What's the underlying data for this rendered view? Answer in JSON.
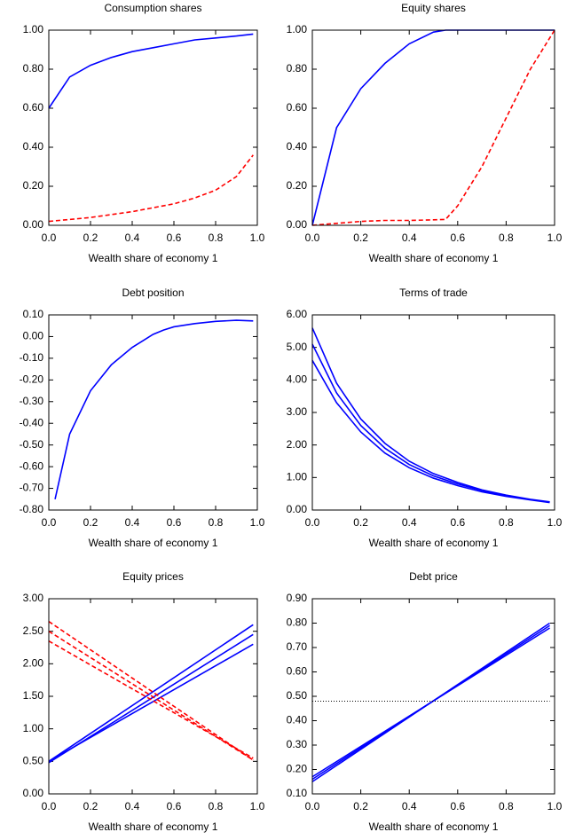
{
  "chart_data": [
    {
      "type": "line",
      "title": "Consumption shares",
      "xlabel": "Wealth share of economy 1",
      "x": [
        0,
        0.1,
        0.2,
        0.3,
        0.4,
        0.5,
        0.6,
        0.7,
        0.8,
        0.9,
        0.98
      ],
      "series": [
        {
          "color": "#0000ff",
          "line_style": "solid",
          "values": [
            0.6,
            0.76,
            0.82,
            0.86,
            0.89,
            0.91,
            0.93,
            0.95,
            0.96,
            0.97,
            0.98
          ]
        },
        {
          "color": "#ff0000",
          "line_style": "dashed",
          "values": [
            0.02,
            0.03,
            0.04,
            0.055,
            0.07,
            0.09,
            0.11,
            0.14,
            0.18,
            0.25,
            0.36
          ]
        }
      ],
      "xlim": [
        0,
        1
      ],
      "xticks": [
        {
          "value": 0,
          "label": "0.0"
        },
        0.2,
        0.4,
        0.6,
        0.8,
        {
          "value": 1,
          "label": "1.0"
        }
      ],
      "ylim": [
        0,
        1
      ],
      "yticks": [
        {
          "value": 0,
          "label": "0.00"
        },
        {
          "value": 0.2,
          "label": "0.20"
        },
        {
          "value": 0.4,
          "label": "0.40"
        },
        {
          "value": 0.6,
          "label": "0.60"
        },
        {
          "value": 0.8,
          "label": "0.80"
        },
        {
          "value": 1,
          "label": "1.00"
        }
      ]
    },
    {
      "type": "line",
      "title": "Equity shares",
      "xlabel": "Wealth share of economy 1",
      "x": [
        0,
        0.1,
        0.2,
        0.3,
        0.4,
        0.5,
        0.55,
        0.6,
        0.7,
        0.8,
        0.9,
        1.0
      ],
      "series": [
        {
          "color": "#0000ff",
          "line_style": "solid",
          "values": [
            0,
            0.5,
            0.7,
            0.83,
            0.93,
            0.99,
            1,
            1,
            1,
            1,
            1,
            1
          ]
        },
        {
          "color": "#ff0000",
          "line_style": "dashed",
          "values": [
            0,
            0.01,
            0.02,
            0.025,
            0.025,
            0.028,
            0.03,
            0.1,
            0.3,
            0.55,
            0.8,
            1.0
          ]
        }
      ],
      "xlim": [
        0,
        1
      ],
      "xticks": [
        {
          "value": 0,
          "label": "0.0"
        },
        0.2,
        0.4,
        0.6,
        0.8,
        {
          "value": 1,
          "label": "1.0"
        }
      ],
      "ylim": [
        0,
        1
      ],
      "yticks": [
        {
          "value": 0,
          "label": "0.00"
        },
        {
          "value": 0.2,
          "label": "0.20"
        },
        {
          "value": 0.4,
          "label": "0.40"
        },
        {
          "value": 0.6,
          "label": "0.60"
        },
        {
          "value": 0.8,
          "label": "0.80"
        },
        {
          "value": 1,
          "label": "1.00"
        }
      ]
    },
    {
      "type": "line",
      "title": "Debt position",
      "xlabel": "Wealth share of economy 1",
      "x": [
        0.03,
        0.1,
        0.2,
        0.3,
        0.4,
        0.5,
        0.55,
        0.6,
        0.7,
        0.8,
        0.9,
        0.98
      ],
      "series": [
        {
          "color": "#0000ff",
          "line_style": "solid",
          "values": [
            -0.75,
            -0.45,
            -0.25,
            -0.13,
            -0.05,
            0.01,
            0.03,
            0.045,
            0.06,
            0.07,
            0.075,
            0.072
          ]
        }
      ],
      "xlim": [
        0,
        1
      ],
      "xticks": [
        {
          "value": 0,
          "label": "0.0"
        },
        0.2,
        0.4,
        0.6,
        0.8,
        {
          "value": 1,
          "label": "1.0"
        }
      ],
      "ylim": [
        -0.8,
        0.1
      ],
      "yticks": [
        {
          "value": 0.1,
          "label": "0.10"
        },
        {
          "value": 0,
          "label": "0.00"
        },
        {
          "value": -0.1,
          "label": "-0.10"
        },
        {
          "value": -0.2,
          "label": "-0.20"
        },
        {
          "value": -0.3,
          "label": "-0.30"
        },
        {
          "value": -0.4,
          "label": "-0.40"
        },
        {
          "value": -0.5,
          "label": "-0.50"
        },
        {
          "value": -0.6,
          "label": "-0.60"
        },
        {
          "value": -0.7,
          "label": "-0.70"
        },
        {
          "value": -0.8,
          "label": "-0.80"
        }
      ]
    },
    {
      "type": "line",
      "title": "Terms of trade",
      "xlabel": "Wealth share of economy 1",
      "x": [
        0,
        0.1,
        0.2,
        0.3,
        0.4,
        0.5,
        0.6,
        0.7,
        0.8,
        0.9,
        0.98
      ],
      "series": [
        {
          "color": "#0000ff",
          "line_style": "solid",
          "values": [
            5.6,
            3.9,
            2.8,
            2.05,
            1.5,
            1.12,
            0.85,
            0.62,
            0.46,
            0.33,
            0.25
          ]
        },
        {
          "color": "#0000ff",
          "line_style": "solid",
          "values": [
            5.1,
            3.6,
            2.6,
            1.9,
            1.4,
            1.05,
            0.8,
            0.6,
            0.44,
            0.32,
            0.24
          ]
        },
        {
          "color": "#0000ff",
          "line_style": "solid",
          "values": [
            4.6,
            3.3,
            2.4,
            1.75,
            1.3,
            0.98,
            0.75,
            0.56,
            0.42,
            0.31,
            0.23
          ]
        }
      ],
      "xlim": [
        0,
        1
      ],
      "xticks": [
        {
          "value": 0,
          "label": "0.0"
        },
        0.2,
        0.4,
        0.6,
        0.8,
        {
          "value": 1,
          "label": "1.0"
        }
      ],
      "ylim": [
        0,
        6
      ],
      "yticks": [
        {
          "value": 0,
          "label": "0.00"
        },
        {
          "value": 1,
          "label": "1.00"
        },
        {
          "value": 2,
          "label": "2.00"
        },
        {
          "value": 3,
          "label": "3.00"
        },
        {
          "value": 4,
          "label": "4.00"
        },
        {
          "value": 5,
          "label": "5.00"
        },
        {
          "value": 6,
          "label": "6.00"
        }
      ]
    },
    {
      "type": "line",
      "title": "Equity prices",
      "xlabel": "Wealth share of economy 1",
      "x": [
        0,
        0.98
      ],
      "series": [
        {
          "color": "#0000ff",
          "line_style": "solid",
          "values": [
            0.5,
            2.3
          ]
        },
        {
          "color": "#0000ff",
          "line_style": "solid",
          "values": [
            0.48,
            2.45
          ]
        },
        {
          "color": "#0000ff",
          "line_style": "solid",
          "values": [
            0.5,
            2.6
          ]
        },
        {
          "color": "#ff0000",
          "line_style": "dashed",
          "values": [
            2.65,
            0.52
          ]
        },
        {
          "color": "#ff0000",
          "line_style": "dashed",
          "values": [
            2.5,
            0.52
          ]
        },
        {
          "color": "#ff0000",
          "line_style": "dashed",
          "values": [
            2.35,
            0.55
          ]
        }
      ],
      "xlim": [
        0,
        1
      ],
      "xticks": [
        {
          "value": 0,
          "label": "0.0"
        },
        0.2,
        0.4,
        0.6,
        0.8,
        {
          "value": 1,
          "label": "1.0"
        }
      ],
      "ylim": [
        0,
        3
      ],
      "yticks": [
        {
          "value": 0,
          "label": "0.00"
        },
        {
          "value": 0.5,
          "label": "0.50"
        },
        {
          "value": 1,
          "label": "1.00"
        },
        {
          "value": 1.5,
          "label": "1.50"
        },
        {
          "value": 2,
          "label": "2.00"
        },
        {
          "value": 2.5,
          "label": "2.50"
        },
        {
          "value": 3,
          "label": "3.00"
        }
      ]
    },
    {
      "type": "line",
      "title": "Debt price",
      "xlabel": "Wealth share of economy 1",
      "x": [
        0,
        0.98
      ],
      "series": [
        {
          "color": "#0000ff",
          "line_style": "solid",
          "values": [
            0.15,
            0.8
          ]
        },
        {
          "color": "#0000ff",
          "line_style": "solid",
          "values": [
            0.17,
            0.78
          ]
        },
        {
          "color": "#0000ff",
          "line_style": "solid",
          "values": [
            0.16,
            0.79
          ]
        },
        {
          "color": "#000000",
          "line_style": "dotted",
          "values": [
            0.48,
            0.48
          ]
        }
      ],
      "xlim": [
        0,
        1
      ],
      "xticks": [
        {
          "value": 0,
          "label": "0.0"
        },
        0.2,
        0.4,
        0.6,
        0.8,
        {
          "value": 1,
          "label": "1.0"
        }
      ],
      "ylim": [
        0.1,
        0.9
      ],
      "yticks": [
        {
          "value": 0.1,
          "label": "0.10"
        },
        {
          "value": 0.2,
          "label": "0.20"
        },
        {
          "value": 0.3,
          "label": "0.30"
        },
        {
          "value": 0.4,
          "label": "0.40"
        },
        {
          "value": 0.5,
          "label": "0.50"
        },
        {
          "value": 0.6,
          "label": "0.60"
        },
        {
          "value": 0.7,
          "label": "0.70"
        },
        {
          "value": 0.8,
          "label": "0.80"
        },
        {
          "value": 0.9,
          "label": "0.90"
        }
      ]
    }
  ]
}
